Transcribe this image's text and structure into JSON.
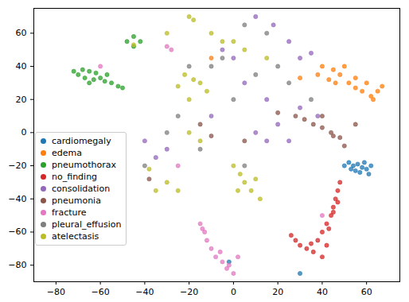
{
  "chart_data": {
    "type": "scatter",
    "xlim": [
      -90,
      75
    ],
    "ylim": [
      -90,
      75
    ],
    "xticks": [
      -80,
      -60,
      -40,
      -20,
      0,
      20,
      40,
      60
    ],
    "yticks": [
      -80,
      -60,
      -40,
      -20,
      0,
      20,
      40,
      60
    ],
    "grid": false,
    "legend": "lower left",
    "series": [
      {
        "name": "cardiomegaly",
        "color": "#1f77b4",
        "marker": "o",
        "x": [
          52,
          54,
          56,
          58,
          60,
          57,
          55,
          62,
          59,
          53,
          61,
          50,
          -2,
          30
        ],
        "values": [
          -18,
          -20,
          -19,
          -21,
          -22,
          -24,
          -23,
          -20,
          -18,
          -22,
          -25,
          -20,
          -78,
          -85
        ]
      },
      {
        "name": "edema",
        "color": "#ff7f0e",
        "marker": "o",
        "x": [
          45,
          48,
          52,
          55,
          58,
          62,
          65,
          67,
          60,
          50,
          43,
          38,
          63,
          40,
          46,
          30,
          -10,
          55
        ],
        "values": [
          38,
          35,
          30,
          27,
          25,
          22,
          25,
          28,
          30,
          40,
          32,
          35,
          20,
          40,
          30,
          33,
          45,
          33
        ]
      },
      {
        "name": "pneumothorax",
        "color": "#2ca02c",
        "marker": "o",
        "x": [
          -70,
          -68,
          -65,
          -62,
          -60,
          -58,
          -55,
          -52,
          -63,
          -67,
          -72,
          -57,
          -50,
          -48,
          -45,
          -42,
          -45,
          -65
        ],
        "values": [
          35,
          38,
          37,
          36,
          33,
          31,
          30,
          28,
          32,
          33,
          37,
          35,
          27,
          55,
          52,
          55,
          58,
          30
        ]
      },
      {
        "name": "no_finding",
        "color": "#d62728",
        "marker": "o",
        "x": [
          28,
          30,
          33,
          36,
          38,
          40,
          42,
          44,
          45,
          46,
          47,
          48,
          35,
          40,
          42,
          45,
          43,
          26,
          47
        ],
        "values": [
          -65,
          -68,
          -70,
          -72,
          -65,
          -60,
          -55,
          -50,
          -45,
          -40,
          -35,
          -30,
          -67,
          -75,
          -68,
          -48,
          -58,
          -62,
          -42
        ]
      },
      {
        "name": "consolidation",
        "color": "#9467bd",
        "marker": "o",
        "x": [
          10,
          18,
          25,
          30,
          35,
          30,
          38,
          10,
          15,
          25,
          -30,
          -35,
          5,
          15,
          -10,
          -40,
          20,
          -5,
          0
        ],
        "values": [
          70,
          65,
          55,
          45,
          48,
          15,
          10,
          0,
          -5,
          -5,
          -10,
          -15,
          30,
          20,
          10,
          -5,
          5,
          50,
          45
        ]
      },
      {
        "name": "pneumonia",
        "color": "#8c564b",
        "marker": "o",
        "x": [
          28,
          32,
          36,
          40,
          44,
          48,
          50,
          45,
          40,
          -15,
          -10,
          5,
          -38,
          20,
          55
        ],
        "values": [
          10,
          8,
          5,
          3,
          0,
          -3,
          -8,
          -2,
          10,
          5,
          -2,
          -5,
          -28,
          12,
          5
        ]
      },
      {
        "name": "fracture",
        "color": "#e377c2",
        "marker": "o",
        "x": [
          -15,
          -13,
          -12,
          -10,
          -8,
          -5,
          -2,
          0,
          2,
          -6,
          -14,
          -3,
          -30,
          -28,
          -60,
          40,
          -25
        ],
        "values": [
          -55,
          -60,
          -65,
          -70,
          -75,
          -78,
          -80,
          -85,
          -75,
          -72,
          -58,
          -82,
          52,
          50,
          40,
          -50,
          -20
        ]
      },
      {
        "name": "pleural_effusion",
        "color": "#7f7f7f",
        "marker": "o",
        "x": [
          -20,
          -10,
          -5,
          5,
          15,
          20,
          35,
          -25,
          -15,
          0,
          -40,
          10,
          25,
          -30,
          5
        ],
        "values": [
          40,
          40,
          45,
          65,
          60,
          40,
          20,
          10,
          -10,
          20,
          -20,
          35,
          30,
          0,
          -20
        ]
      },
      {
        "name": "atelectasis",
        "color": "#bcbd22",
        "marker": "o",
        "x": [
          -20,
          -18,
          -22,
          -18,
          -15,
          -12,
          -20,
          -25,
          0,
          3,
          5,
          8,
          10,
          2,
          -30,
          -35,
          -25,
          -20,
          -15,
          5,
          -5,
          0,
          -10,
          -38,
          -45,
          15,
          -30,
          12
        ],
        "values": [
          70,
          68,
          35,
          32,
          30,
          25,
          20,
          28,
          -20,
          -25,
          -30,
          -35,
          -28,
          -35,
          -30,
          -35,
          -35,
          0,
          -5,
          50,
          55,
          55,
          60,
          -22,
          53,
          45,
          60,
          -40
        ]
      }
    ]
  }
}
